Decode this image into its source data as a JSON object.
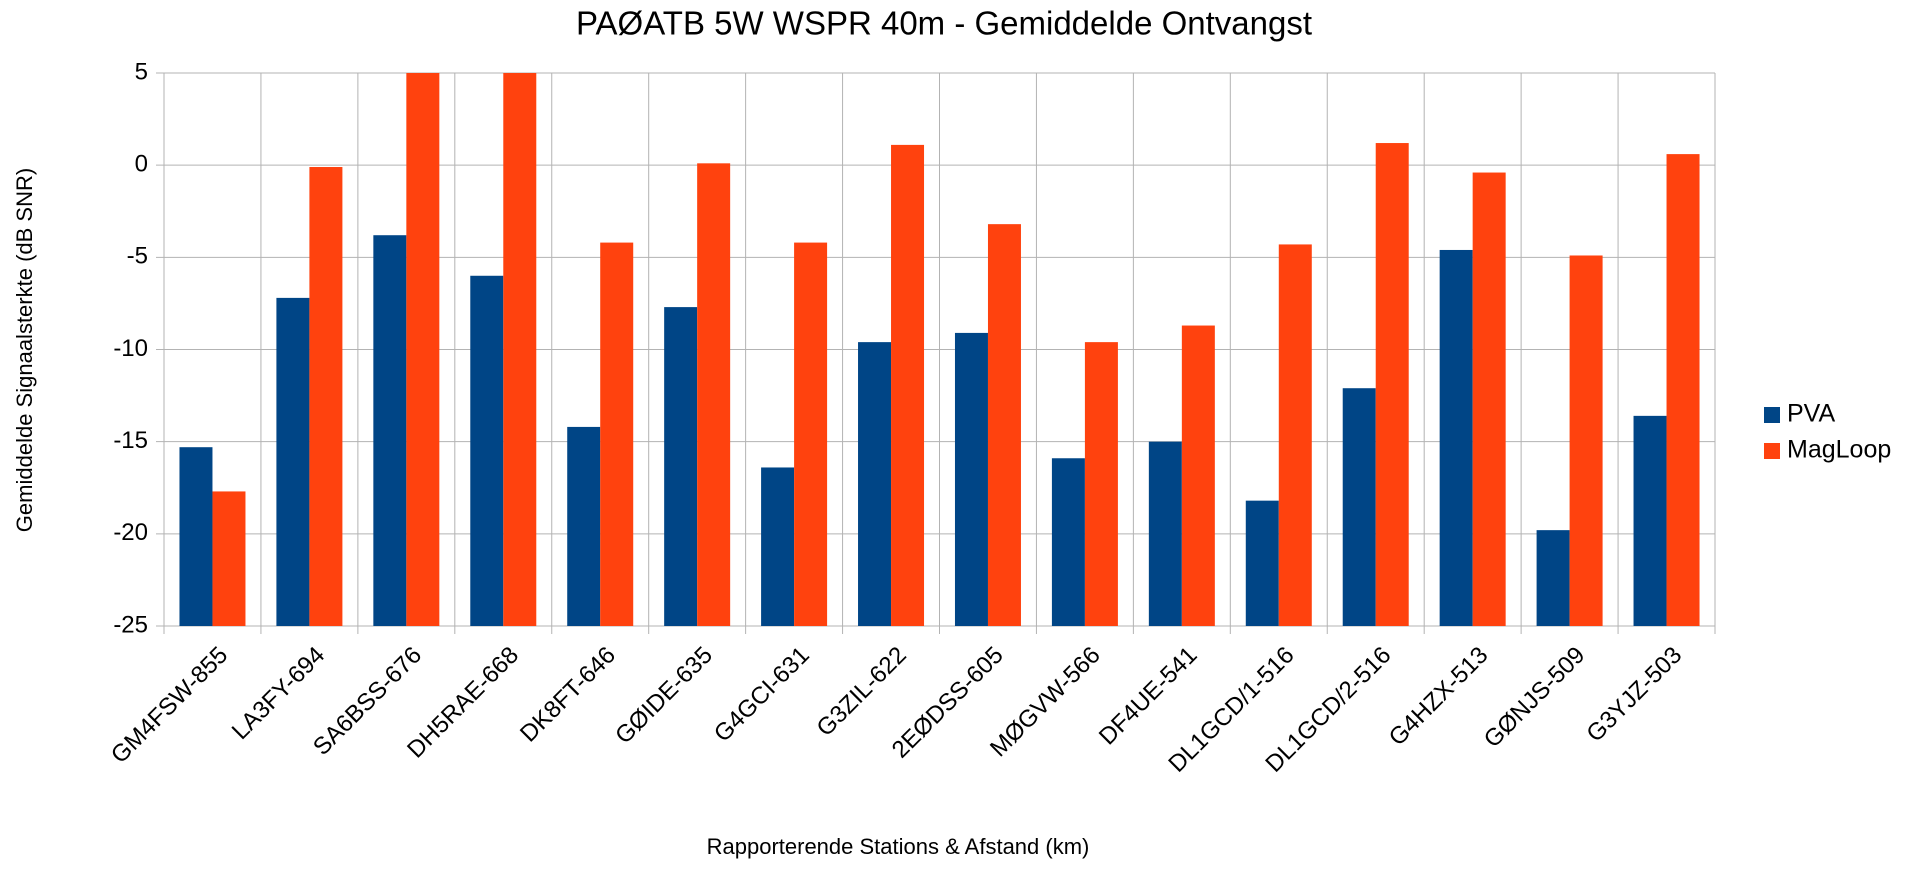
{
  "chart_data": {
    "type": "bar",
    "title": "PAØATB 5W WSPR 40m - Gemiddelde Ontvangst",
    "x_label": "Rapporterende Stations & Afstand (km)",
    "y_label": "Gemiddelde Signaalsterkte (dB SNR)",
    "categories": [
      "GM4FSW-855",
      "LA3FY-694",
      "SA6BSS-676",
      "DH5RAE-668",
      "DK8FT-646",
      "GØIDE-635",
      "G4GCI-631",
      "G3ZIL-622",
      "2EØDSS-605",
      "MØGVW-566",
      "DF4UE-541",
      "DL1GCD/1-516",
      "DL1GCD/2-516",
      "G4HZX-513",
      "GØNJS-509",
      "G3YJZ-503"
    ],
    "series": [
      {
        "name": "PVA",
        "color": "#004586",
        "values": [
          -15.3,
          -7.2,
          -3.8,
          -6.0,
          -14.2,
          -7.7,
          -16.4,
          -9.6,
          -9.1,
          -15.9,
          -15.0,
          -18.2,
          -12.1,
          -4.6,
          -19.8,
          -13.6
        ]
      },
      {
        "name": "MagLoop",
        "color": "#ff420e",
        "values": [
          -17.7,
          -0.1,
          5,
          5,
          -4.2,
          0.1,
          -4.2,
          1.1,
          -3.2,
          -9.6,
          -8.7,
          -4.3,
          1.2,
          -0.4,
          -4.9,
          0.6
        ]
      }
    ],
    "ylim": [
      -25,
      5
    ],
    "yticks": [
      -25,
      -20,
      -15,
      -10,
      -5,
      0,
      5
    ],
    "grid": true,
    "legend": "right"
  }
}
